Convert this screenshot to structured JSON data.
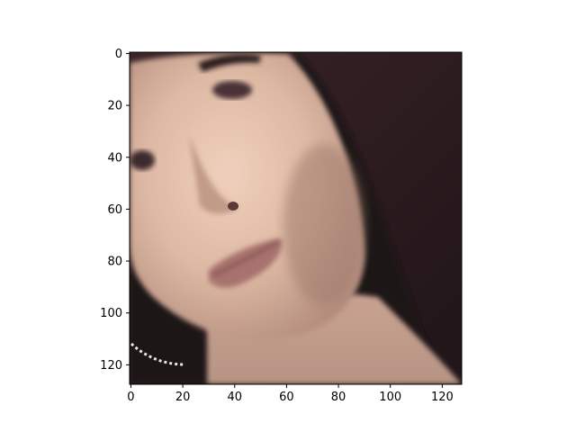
{
  "chart_data": {
    "type": "image",
    "title": "",
    "xlabel": "",
    "ylabel": "",
    "image_size": [
      128,
      128
    ],
    "xlim": [
      -0.5,
      127.5
    ],
    "ylim": [
      127.5,
      -0.5
    ],
    "x_ticks": [
      0,
      20,
      40,
      60,
      80,
      100,
      120
    ],
    "y_ticks": [
      0,
      20,
      40,
      60,
      80,
      100,
      120
    ],
    "x_tick_labels": [
      "0",
      "20",
      "40",
      "60",
      "80",
      "100",
      "120"
    ],
    "y_tick_labels": [
      "0",
      "20",
      "40",
      "60",
      "80",
      "100",
      "120"
    ],
    "y_axis_inverted": true,
    "grid": false,
    "colors": {
      "background": "#3a2428",
      "skin": "#e0b8a3",
      "hair": "#1c1216"
    }
  }
}
